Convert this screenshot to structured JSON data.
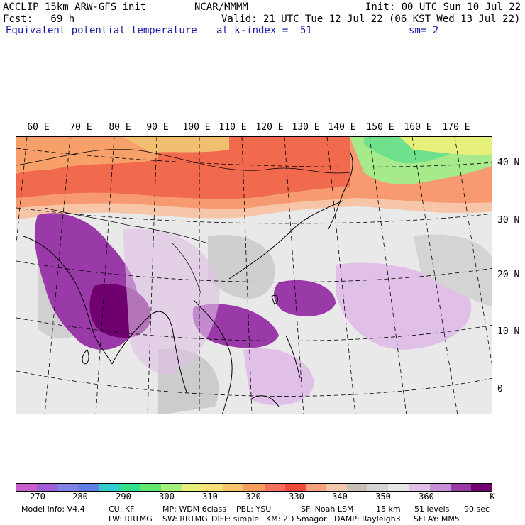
{
  "header": {
    "model": "ACCLIP 15km ARW-GFS init",
    "center": "NCAR/MMMM",
    "init": "Init: 00 UTC Sun 10 Jul 22",
    "fcst": "Fcst:   69 h",
    "valid": "Valid: 21 UTC Tue 12 Jul 22 (06 KST Wed 13 Jul 22)",
    "variable": "Equivalent potential temperature",
    "level": "at k-index =  51",
    "smooth": "sm= 2"
  },
  "longitude_labels": [
    "60 E",
    "70 E",
    "80 E",
    "90 E",
    "100 E",
    "110 E",
    "120 E",
    "130 E",
    "140 E",
    "150 E",
    "160 E",
    "170 E"
  ],
  "latitude_labels": [
    "40 N",
    "30 N",
    "20 N",
    "10 N",
    "0"
  ],
  "colorbar": {
    "colors": [
      "#c95fcf",
      "#9e5fd6",
      "#8383e6",
      "#5f7fe6",
      "#33cccc",
      "#33e08c",
      "#5fe66b",
      "#a6f07a",
      "#e6f07a",
      "#f5e07a",
      "#f7c36b",
      "#f79e5f",
      "#f7705f",
      "#f24a3a",
      "#f7a07f",
      "#f0c7ad",
      "#c7c0b8",
      "#d4d4d4",
      "#e6e6e6",
      "#e0c0e6",
      "#c78fd6",
      "#9a3aa8",
      "#700070"
    ],
    "labels": [
      "270",
      "280",
      "290",
      "300",
      "310",
      "320",
      "330",
      "340",
      "350",
      "360"
    ],
    "unit": "K"
  },
  "footer": {
    "line1": [
      "Model Info: V4.4",
      "CU: KF",
      "MP: WDM 6class",
      "PBL: YSU",
      "SF: Noah LSM",
      "15 km",
      "51 levels",
      "90 sec"
    ],
    "line2": [
      "LW: RRTMG",
      "SW: RRTMG",
      "DIFF: simple",
      "KM: 2D Smagor",
      "DAMP: Rayleigh3",
      "SFLAY: MM5"
    ]
  }
}
